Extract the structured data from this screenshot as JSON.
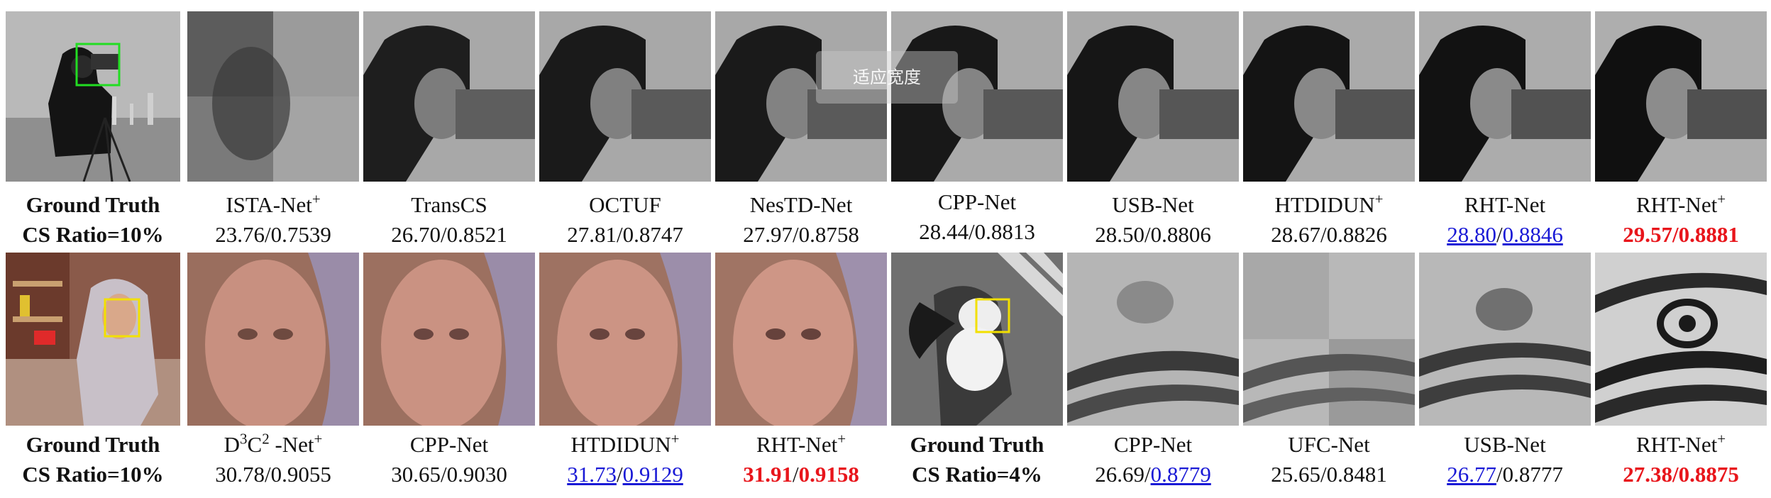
{
  "row1": {
    "gt": {
      "line1": "Ground Truth",
      "line2": "CS Ratio=10%"
    },
    "methods": [
      {
        "name": "ISTA-Net",
        "plus": true,
        "psnr": "23.76",
        "ssim": "0.7539"
      },
      {
        "name": "TransCS",
        "plus": false,
        "psnr": "26.70",
        "ssim": "0.8521"
      },
      {
        "name": "OCTUF",
        "plus": false,
        "psnr": "27.81",
        "ssim": "0.8747"
      },
      {
        "name": "NesTD-Net",
        "plus": false,
        "psnr": "27.97",
        "ssim": "0.8758"
      },
      {
        "name": "CPP-Net",
        "plus": false,
        "psnr": "28.44",
        "ssim": "0.8813"
      },
      {
        "name": "USB-Net",
        "plus": false,
        "psnr": "28.50",
        "ssim": "0.8806"
      },
      {
        "name": "HTDIDUN",
        "plus": true,
        "psnr": "28.67",
        "ssim": "0.8826"
      },
      {
        "name": "RHT-Net",
        "plus": false,
        "psnr": "28.80",
        "ssim": "0.8846"
      },
      {
        "name": "RHT-Net",
        "plus": true,
        "psnr": "29.57",
        "ssim": "0.8881"
      }
    ]
  },
  "row2": {
    "gt1": {
      "line1": "Ground Truth",
      "line2": "CS Ratio=10%"
    },
    "gt2": {
      "line1": "Ground Truth",
      "line2": "CS Ratio=4%"
    },
    "methods": [
      {
        "name_pre": "D",
        "sup1": "3",
        "name_mid": "C",
        "sup2": "2",
        "name_post": " -Net",
        "plus": true,
        "psnr": "30.78",
        "ssim": "0.9055"
      },
      {
        "name": "CPP-Net",
        "plus": false,
        "psnr": "30.65",
        "ssim": "0.9030"
      },
      {
        "name": "HTDIDUN",
        "plus": true,
        "psnr": "31.73",
        "ssim": "0.9129"
      },
      {
        "name": "RHT-Net",
        "plus": true,
        "psnr": "31.91",
        "ssim": "0.9158"
      },
      {
        "name": "CPP-Net",
        "plus": false,
        "psnr": "26.69",
        "ssim": "0.8779"
      },
      {
        "name": "UFC-Net",
        "plus": false,
        "psnr": "25.65",
        "ssim": "0.8481"
      },
      {
        "name": "USB-Net",
        "plus": false,
        "psnr": "26.77",
        "ssim": "0.8777"
      },
      {
        "name": "RHT-Net",
        "plus": true,
        "psnr": "27.38",
        "ssim": "0.8875"
      }
    ]
  },
  "plus_symbol": "+",
  "overlay_hint": "适应宽度",
  "colors": {
    "best": "#e8151b",
    "second": "#1a1ad6",
    "gt_box_row1": "#22dd22",
    "gt_box_row2": "#f2e000"
  }
}
